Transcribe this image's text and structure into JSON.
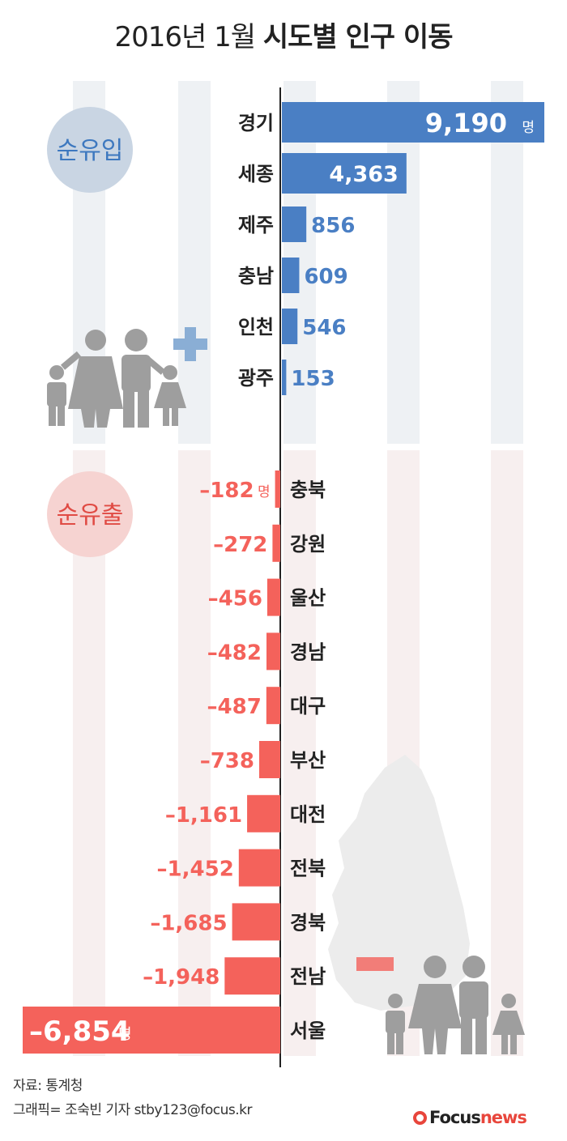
{
  "title": {
    "prefix": "2016년 1월",
    "bold": "시도별 인구 이동"
  },
  "chart_data": {
    "type": "bar",
    "orientation": "horizontal-diverging",
    "unit": "명",
    "groups": [
      {
        "label": "순유입",
        "color": "#4a7fc4",
        "categories": [
          "경기",
          "세종",
          "제주",
          "충남",
          "인천",
          "광주"
        ],
        "values": [
          9190,
          4363,
          856,
          609,
          546,
          153
        ],
        "value_labels": [
          "9,190",
          "4,363",
          "856",
          "609",
          "546",
          "153"
        ]
      },
      {
        "label": "순유출",
        "color": "#f4625b",
        "categories": [
          "충북",
          "강원",
          "울산",
          "경남",
          "대구",
          "부산",
          "대전",
          "전북",
          "경북",
          "전남",
          "서울"
        ],
        "values": [
          -182,
          -272,
          -456,
          -482,
          -487,
          -738,
          -1161,
          -1452,
          -1685,
          -1948,
          -6854
        ],
        "value_labels": [
          "–182",
          "–272",
          "–456",
          "–482",
          "–487",
          "–738",
          "–1,161",
          "–1,452",
          "–1,685",
          "–1,948",
          "–6,854"
        ]
      }
    ],
    "grid": true,
    "legend": "left"
  },
  "colors": {
    "inflow": "#4a7fc4",
    "outflow": "#f4625b",
    "inflow_badge": "#c9d5e3",
    "outflow_badge": "#f6d3d1",
    "figure": "#9a9a9a"
  },
  "icons": [
    "family-icon",
    "plus-icon",
    "korea-map-icon"
  ],
  "footer": {
    "source": "자료: 통계청",
    "credit": "그래픽= 조숙빈 기자 stby123@focus.kr"
  },
  "logo": {
    "focus": "Focus",
    "news": "news"
  }
}
